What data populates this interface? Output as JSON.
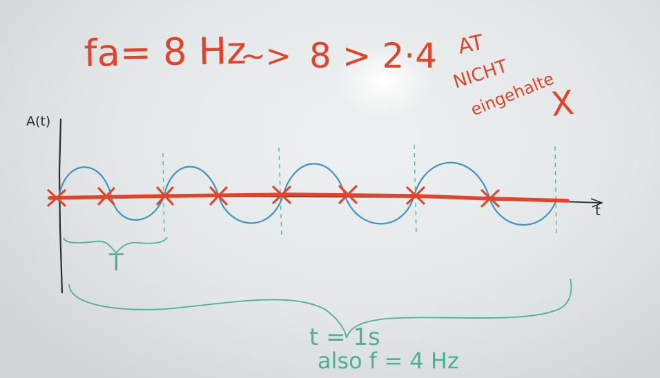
{
  "header": {
    "formula": "fa= 8 Hz",
    "arrow": "~>",
    "comparison": "8 > 2·4"
  },
  "note": {
    "line1": "AT",
    "line2": "NICHT",
    "line3": "eingehalte",
    "mark": "X"
  },
  "graph": {
    "ylabel": "A(t)",
    "xlabel": "t",
    "period_label": "T"
  },
  "footer": {
    "line1": "t = 1s",
    "line2": "also  f = 4 Hz"
  },
  "colors": {
    "red_ink": "#e0442a",
    "blue_ink": "#3f92c4",
    "green_ink": "#4fae98",
    "black_ink": "#2c2c2c"
  }
}
